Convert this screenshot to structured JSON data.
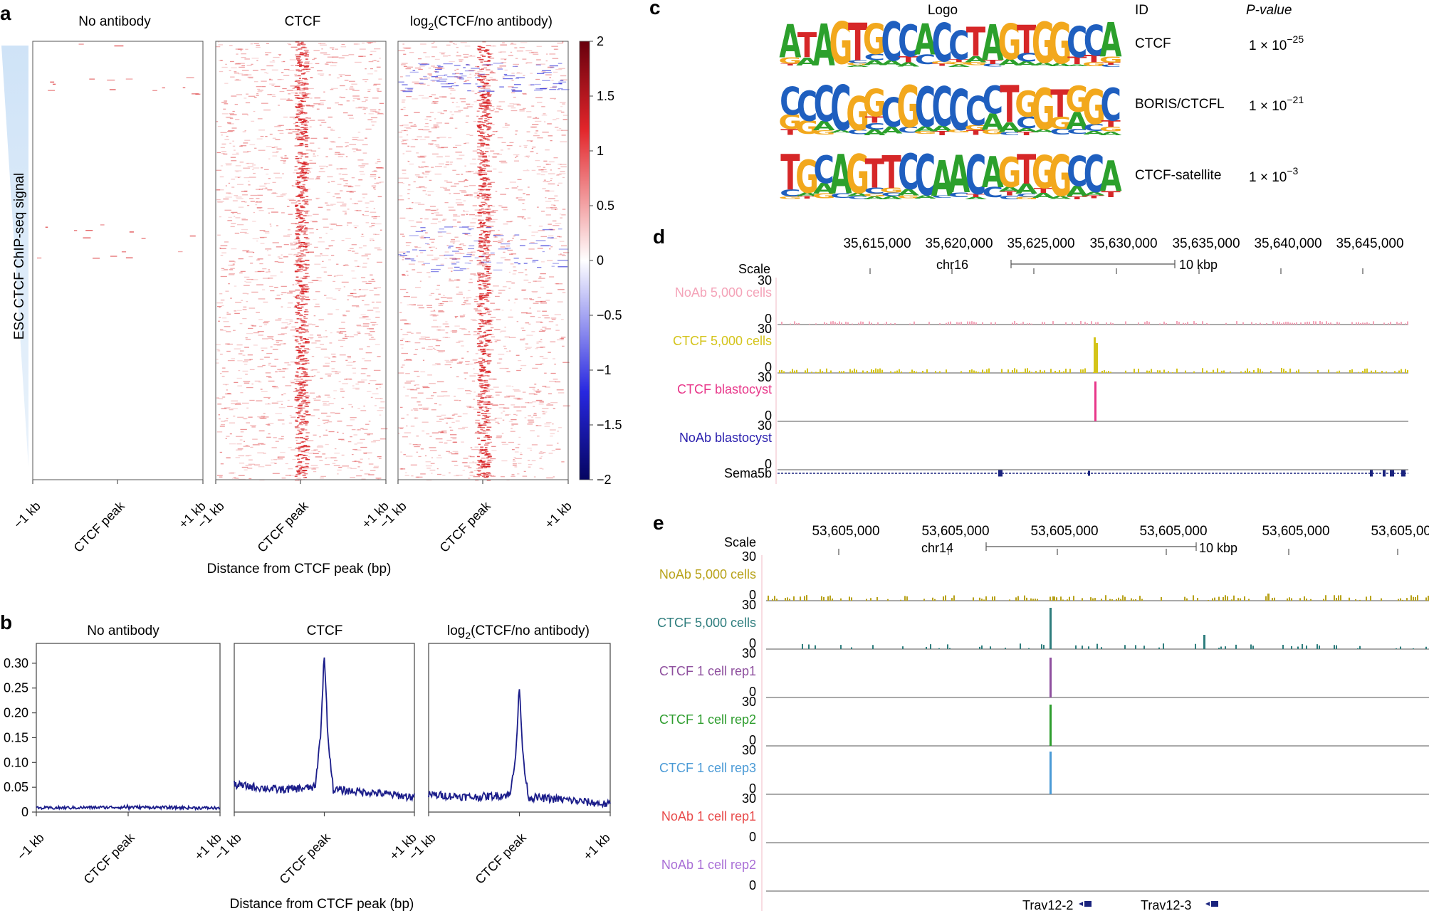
{
  "panel_a": {
    "label": "a",
    "columns": [
      {
        "id": "noab",
        "title": "No antibody"
      },
      {
        "id": "ctcf",
        "title": "CTCF"
      },
      {
        "id": "log2",
        "title_pre": "log",
        "title_sub": "2",
        "title_post": "(CTCF/no antibody)"
      }
    ],
    "y_label": "ESC CTCF ChIP-seq signal",
    "x_ticks": [
      "−1 kb",
      "CTCF peak",
      "+1 kb"
    ],
    "x_label": "Distance from CTCF peak (bp)",
    "colorbar_ticks": [
      "2",
      "1.5",
      "1",
      "0.5",
      "0",
      "−0.5",
      "−1",
      "−1.5",
      "−2"
    ],
    "colors": {
      "positive": "#d7191c",
      "negative": "#2b2bd6",
      "bar_top": "#67000d",
      "bar_bottom": "#050560"
    }
  },
  "panel_b": {
    "label": "b",
    "titles": [
      "No antibody",
      "CTCF",
      "log2(CTCF/no antibody)"
    ],
    "x_ticks": [
      "−1 kb",
      "CTCF peak",
      "+1 kb"
    ],
    "x_label": "Distance from CTCF peak (bp)",
    "line_color": "#1b1d8a"
  },
  "panel_c": {
    "label": "c",
    "headers": {
      "logo": "Logo",
      "id": "ID",
      "pvalue": "P-value"
    },
    "rows": [
      {
        "logo": "ATAGTGCCACCTAGTGGCCA",
        "id": "CTCF",
        "p_base": "1 × 10",
        "p_exp": "−25"
      },
      {
        "logo": "CCCCGGCGCCCCCTGGTGGC",
        "id": "BORIS/CTCFL",
        "p_base": "1 × 10",
        "p_exp": "−21"
      },
      {
        "logo": "TGCAGTTCCAACAGTGGCCA",
        "id": "CTCF-satellite",
        "p_base": "1 × 10",
        "p_exp": "−3"
      }
    ],
    "base_colors": {
      "A": "#2ca02c",
      "C": "#1f5fbf",
      "G": "#f2a81d",
      "T": "#d62728"
    }
  },
  "panel_d": {
    "label": "d",
    "coords": [
      "35,615,000",
      "35,620,000",
      "35,625,000",
      "35,630,000",
      "35,635,000",
      "35,640,000",
      "35,645,000"
    ],
    "scale_label": "Scale",
    "chrom": "chr16",
    "scale_bar": "10 kbp",
    "tracks": [
      {
        "name": "NoAb 5,000 cells",
        "max": "30",
        "min": "0",
        "color": "#f4a3b8"
      },
      {
        "name": "CTCF 5,000 cells",
        "max": "30",
        "min": "0",
        "color": "#d4c41a"
      },
      {
        "name": "CTCF blastocyst",
        "max": "30",
        "min": "0",
        "color": "#e8378a"
      },
      {
        "name": "NoAb blastocyst",
        "max": "30",
        "min": "0",
        "color": "#2a1fae"
      }
    ],
    "gene": "Sema5b",
    "gene_color": "#1a237e"
  },
  "panel_e": {
    "label": "e",
    "coords": [
      "53,605,000",
      "53,605,000",
      "53,605,000",
      "53,605,000",
      "53,605,000",
      "53,605,000"
    ],
    "scale_label": "Scale",
    "chrom": "chr14",
    "scale_bar": "10 kbp",
    "tracks": [
      {
        "name": "NoAb 5,000 cells",
        "max": "30",
        "min": "0",
        "color": "#b8a21a"
      },
      {
        "name": "CTCF 5,000 cells",
        "max": "30",
        "min": "0",
        "color": "#2e7d7d"
      },
      {
        "name": "CTCF 1 cell rep1",
        "max": "30",
        "min": "0",
        "color": "#8e4f9e"
      },
      {
        "name": "CTCF 1 cell rep2",
        "max": "30",
        "min": "0",
        "color": "#2e9d2e"
      },
      {
        "name": "CTCF 1 cell rep3",
        "max": "30",
        "min": "0",
        "color": "#4a9ad6"
      },
      {
        "name": "NoAb 1 cell rep1",
        "max": "30",
        "min": "0",
        "color": "#e84a4a"
      },
      {
        "name": "NoAb 1 cell rep2",
        "max": "",
        "min": "0",
        "color": "#a96fd6"
      }
    ],
    "genes": [
      "Trav12-2",
      "Trav12-3"
    ],
    "gene_color": "#1a237e"
  },
  "chart_data": [
    {
      "type": "line",
      "title": "No antibody",
      "xlabel": "Distance from CTCF peak (bp)",
      "x_ticks": [
        "−1 kb",
        "CTCF peak",
        "+1 kb"
      ],
      "y_ticks": [
        "0",
        "0.05",
        "0.10",
        "0.15",
        "0.20",
        "0.25",
        "0.30"
      ],
      "ylim": [
        0,
        0.34
      ],
      "series": [
        {
          "x": [
            -1000,
            -500,
            0,
            500,
            1000
          ],
          "values": [
            0.008,
            0.009,
            0.01,
            0.009,
            0.008
          ]
        }
      ]
    },
    {
      "type": "line",
      "title": "CTCF",
      "xlabel": "Distance from CTCF peak (bp)",
      "x_ticks": [
        "−1 kb",
        "CTCF peak",
        "+1 kb"
      ],
      "ylim": [
        0,
        0.34
      ],
      "series": [
        {
          "x": [
            -1000,
            -500,
            -100,
            -40,
            0,
            40,
            100,
            500,
            1000
          ],
          "values": [
            0.055,
            0.045,
            0.05,
            0.16,
            0.32,
            0.15,
            0.045,
            0.04,
            0.03
          ]
        }
      ]
    },
    {
      "type": "line",
      "title": "log2(CTCF/no antibody)",
      "xlabel": "Distance from CTCF peak (bp)",
      "x_ticks": [
        "−1 kb",
        "CTCF peak",
        "+1 kb"
      ],
      "ylim": [
        0,
        0.34
      ],
      "series": [
        {
          "x": [
            -1000,
            -500,
            -100,
            -40,
            0,
            40,
            100,
            500,
            1000
          ],
          "values": [
            0.035,
            0.03,
            0.035,
            0.12,
            0.25,
            0.11,
            0.03,
            0.025,
            0.015
          ]
        }
      ]
    }
  ]
}
